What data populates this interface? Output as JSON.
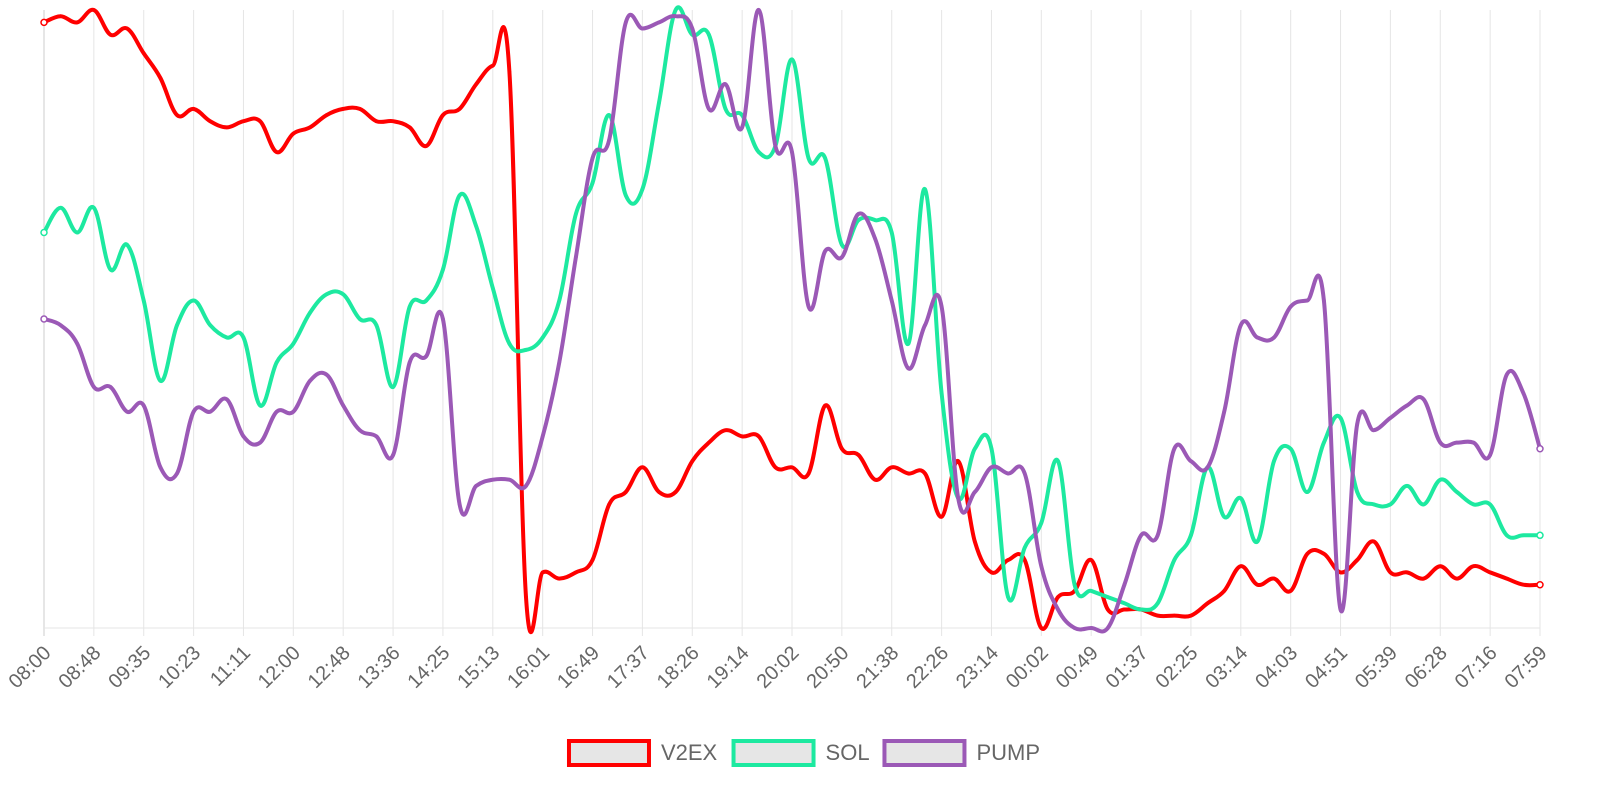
{
  "chart_data": {
    "type": "line",
    "grid": true,
    "legend_position": "bottom",
    "y_axis_visible": false,
    "ylim": [
      0,
      100
    ],
    "x_tick_labels": [
      "08:00",
      "08:48",
      "09:35",
      "10:23",
      "11:11",
      "12:00",
      "12:48",
      "13:36",
      "14:25",
      "15:13",
      "16:01",
      "16:49",
      "17:37",
      "18:26",
      "19:14",
      "20:02",
      "20:50",
      "21:38",
      "22:26",
      "23:14",
      "00:02",
      "00:49",
      "01:37",
      "02:25",
      "03:14",
      "04:03",
      "04:51",
      "05:39",
      "06:28",
      "07:16",
      "07:59"
    ],
    "x_count": 91,
    "series": [
      {
        "name": "V2EX",
        "color": "#ff0000",
        "values": [
          98,
          99,
          98,
          100,
          96,
          97,
          93,
          89,
          83,
          84,
          82,
          81,
          82,
          82,
          77,
          80,
          81,
          83,
          84,
          84,
          82,
          82,
          81,
          78,
          83,
          84,
          88,
          91,
          90,
          5,
          9,
          8,
          9,
          11,
          20,
          22,
          26,
          22,
          22,
          27,
          30,
          32,
          31,
          31,
          26,
          26,
          25,
          36,
          29,
          28,
          24,
          26,
          25,
          25,
          18,
          27,
          14,
          9,
          11,
          11,
          0,
          5,
          6,
          11,
          3,
          3,
          3,
          2,
          2,
          2,
          4,
          6,
          10,
          7,
          8,
          6,
          12,
          12,
          9,
          11,
          14,
          9,
          9,
          8,
          10,
          8,
          10,
          9,
          8,
          7,
          7
        ]
      },
      {
        "name": "SOL",
        "color": "#1de9a0",
        "values": [
          64,
          68,
          64,
          68,
          58,
          62,
          53,
          40,
          49,
          53,
          49,
          47,
          47,
          36,
          43,
          46,
          51,
          54,
          54,
          50,
          49,
          39,
          52,
          53,
          58,
          70,
          65,
          55,
          46,
          45,
          47,
          53,
          67,
          72,
          83,
          70,
          71,
          85,
          100,
          96,
          96,
          84,
          83,
          77,
          78,
          92,
          76,
          76,
          62,
          66,
          66,
          64,
          46,
          71,
          38,
          21,
          29,
          29,
          5,
          13,
          17,
          27,
          7,
          6,
          5,
          4,
          3,
          4,
          11,
          15,
          26,
          18,
          21,
          14,
          27,
          29,
          22,
          30,
          34,
          22,
          20,
          20,
          23,
          20,
          24,
          22,
          20,
          20,
          15,
          15,
          15
        ]
      },
      {
        "name": "PUMP",
        "color": "#9b59b6",
        "values": [
          50,
          49,
          46,
          39,
          39,
          35,
          36,
          26,
          25,
          35,
          35,
          37,
          31,
          30,
          35,
          35,
          40,
          41,
          36,
          32,
          31,
          28,
          43,
          44,
          50,
          20,
          23,
          24,
          24,
          23,
          31,
          43,
          60,
          76,
          79,
          98,
          97,
          98,
          99,
          97,
          84,
          88,
          81,
          100,
          78,
          77,
          52,
          61,
          60,
          67,
          63,
          53,
          42,
          49,
          52,
          21,
          22,
          26,
          25,
          25,
          10,
          3,
          0,
          0,
          0,
          7,
          15,
          15,
          29,
          27,
          26,
          35,
          49,
          47,
          47,
          52,
          53,
          53,
          3,
          33,
          32,
          34,
          36,
          37,
          30,
          30,
          30,
          28,
          41,
          38,
          29
        ]
      }
    ]
  }
}
